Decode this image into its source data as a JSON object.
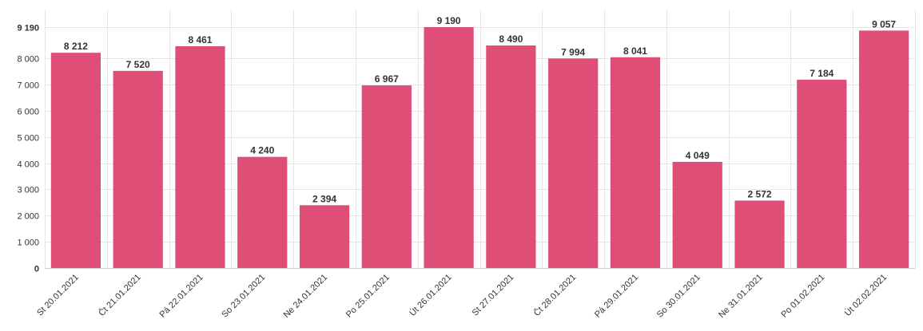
{
  "chart_data": {
    "type": "bar",
    "categories": [
      "St 20.01.2021",
      "Čt 21.01.2021",
      "Pá 22.01.2021",
      "So 23.01.2021",
      "Ne 24.01.2021",
      "Po 25.01.2021",
      "Út 26.01.2021",
      "St 27.01.2021",
      "Čt 28.01.2021",
      "Pá 29.01.2021",
      "So 30.01.2021",
      "Ne 31.01.2021",
      "Po 01.02.2021",
      "Út 02.02.2021"
    ],
    "values": [
      8212,
      7520,
      8461,
      4240,
      2394,
      6967,
      9190,
      8490,
      7994,
      8041,
      4049,
      2572,
      7184,
      9057
    ],
    "data_labels": [
      "8 212",
      "7 520",
      "8 461",
      "4 240",
      "2 394",
      "6 967",
      "9 190",
      "8 490",
      "7 994",
      "8 041",
      "4 049",
      "2 572",
      "7 184",
      "9 057"
    ],
    "yticks": [
      0,
      1000,
      2000,
      3000,
      4000,
      5000,
      6000,
      7000,
      8000,
      9190
    ],
    "ytick_labels": [
      "0",
      "1 000",
      "2 000",
      "3 000",
      "4 000",
      "5 000",
      "6 000",
      "7 000",
      "8 000",
      "9 190"
    ],
    "ylim": [
      0,
      9190
    ],
    "title": "",
    "xlabel": "",
    "ylabel": "",
    "grid": true,
    "bar_color": "#dc4470"
  }
}
